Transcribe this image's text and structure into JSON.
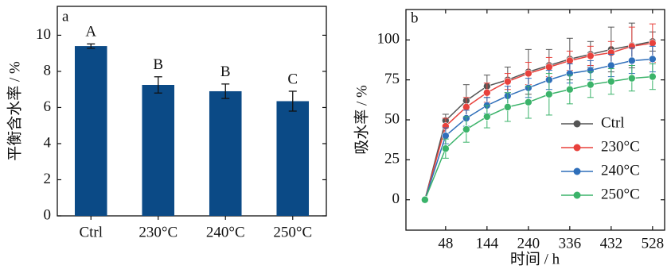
{
  "chart_data": [
    {
      "type": "bar",
      "panel_label": "a",
      "ylabel": "平衡含水率 / %",
      "categories": [
        "Ctrl",
        "230°C",
        "240°C",
        "250°C"
      ],
      "values": [
        9.4,
        7.25,
        6.9,
        6.35
      ],
      "errors": [
        0.12,
        0.45,
        0.4,
        0.55
      ],
      "annotations": [
        "A",
        "B",
        "B",
        "C"
      ],
      "color": "#0b4a86",
      "ylim": [
        0,
        11.6
      ],
      "yticks": [
        0,
        2,
        4,
        6,
        8,
        10
      ]
    },
    {
      "type": "line",
      "panel_label": "b",
      "xlabel": "时间 / h",
      "ylabel": "吸水率 / %",
      "x": [
        0,
        48,
        96,
        144,
        192,
        240,
        288,
        336,
        384,
        432,
        480,
        528
      ],
      "series": [
        {
          "name": "Ctrl",
          "color": "#555555",
          "values": [
            0,
            49.5,
            62,
            71,
            75,
            80,
            84,
            88,
            91,
            94,
            96.5,
            99
          ],
          "errors": [
            0,
            4,
            10,
            7,
            8,
            14,
            10,
            13,
            8,
            14,
            14,
            6
          ]
        },
        {
          "name": "230°C",
          "color": "#e8413c",
          "values": [
            0,
            46,
            58,
            67,
            74,
            79,
            83,
            87,
            90,
            92,
            96,
            98
          ],
          "errors": [
            0,
            5,
            6,
            6,
            5,
            7,
            6,
            6,
            6,
            7,
            12,
            12
          ]
        },
        {
          "name": "240°C",
          "color": "#2f6fba",
          "values": [
            0,
            40,
            51,
            59,
            65,
            70,
            75,
            79,
            81,
            84,
            87,
            88
          ],
          "errors": [
            0,
            5,
            5,
            5,
            6,
            6,
            6,
            6,
            6,
            7,
            8,
            8
          ]
        },
        {
          "name": "250°C",
          "color": "#3bb36a",
          "values": [
            0,
            32,
            44,
            52,
            58,
            61,
            66,
            69,
            72,
            74,
            76,
            77
          ],
          "errors": [
            0,
            6,
            8,
            7,
            9,
            10,
            13,
            9,
            8,
            8,
            8,
            8
          ]
        }
      ],
      "xlim": [
        -44,
        556
      ],
      "xticks": [
        48,
        144,
        240,
        336,
        432,
        528
      ],
      "ylim": [
        -19,
        119
      ],
      "yticks": [
        0,
        25,
        50,
        75,
        100
      ],
      "legend": "center right"
    }
  ]
}
